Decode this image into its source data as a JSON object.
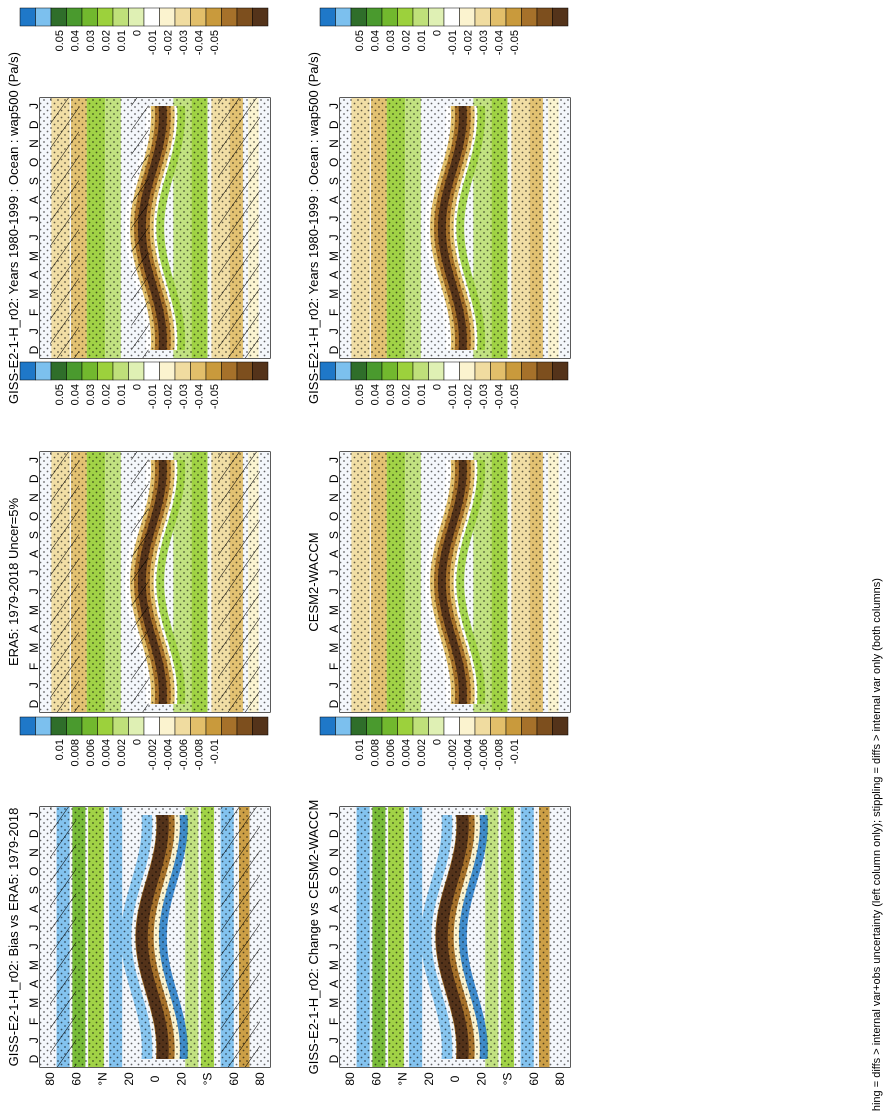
{
  "figure": {
    "footnote": "hatching = diffs > internal var+obs uncertainty (left column only); stippling = diffs > internal var only (both columns)"
  },
  "colors": {
    "mean_scale": [
      "#1f78c8",
      "#7cc0ee",
      "#2f6e2a",
      "#4a9a2e",
      "#72b82e",
      "#9cd13c",
      "#bfe07a",
      "#dff0b4",
      "#ffffff",
      "#fbf3cf",
      "#f0dca0",
      "#e2bf6a",
      "#c99a3c",
      "#a6712a",
      "#7d4f1e",
      "#54331a"
    ],
    "diff_scale": [
      "#1f78c8",
      "#7cc0ee",
      "#2f6e2a",
      "#4a9a2e",
      "#72b82e",
      "#9cd13c",
      "#bfe07a",
      "#dff0b4",
      "#ffffff",
      "#fbf3cf",
      "#f0dca0",
      "#e2bf6a",
      "#c99a3c",
      "#a6712a",
      "#7d4f1e",
      "#54331a"
    ]
  },
  "chart_data": [
    {
      "type": "heatmap",
      "panel": "top-left",
      "title": "GISS-E2-1-H_r02: Years 1980-1999 : Ocean : wap500 (Pa/s)",
      "x_ticks": [
        "D",
        "J",
        "F",
        "M",
        "A",
        "M",
        "J",
        "J",
        "A",
        "S",
        "O",
        "N",
        "D",
        "J"
      ],
      "y_ticks": [
        "80",
        "60",
        "°N",
        "20",
        "0",
        "20",
        "°S",
        "60",
        "80"
      ],
      "colorbar_labels": [
        "0.05",
        "0.04",
        "0.03",
        "0.02",
        "0.01",
        "0",
        "-0.01",
        "-0.02",
        "-0.03",
        "-0.04",
        "-0.05"
      ],
      "hatching": true,
      "stippling": true
    },
    {
      "type": "heatmap",
      "panel": "top-right",
      "title": "GISS-E2-1-H_r02: Years 1980-1999 : Ocean : wap500 (Pa/s)",
      "x_ticks": [
        "D",
        "J",
        "F",
        "M",
        "A",
        "M",
        "J",
        "J",
        "A",
        "S",
        "O",
        "N",
        "D",
        "J"
      ],
      "y_ticks": [
        "80",
        "60",
        "°N",
        "20",
        "0",
        "20",
        "°S",
        "60",
        "80"
      ],
      "colorbar_labels": [
        "0.05",
        "0.04",
        "0.03",
        "0.02",
        "0.01",
        "0",
        "-0.01",
        "-0.02",
        "-0.03",
        "-0.04",
        "-0.05"
      ],
      "hatching": false,
      "stippling": true
    },
    {
      "type": "heatmap",
      "panel": "middle-left",
      "title": "ERA5: 1979-2018 Uncer=5%",
      "x_ticks": [
        "D",
        "J",
        "F",
        "M",
        "A",
        "M",
        "J",
        "J",
        "A",
        "S",
        "O",
        "N",
        "D",
        "J"
      ],
      "y_ticks": [
        "80",
        "60",
        "°N",
        "20",
        "0",
        "20",
        "°S",
        "60",
        "80"
      ],
      "colorbar_labels": [
        "0.05",
        "0.04",
        "0.03",
        "0.02",
        "0.01",
        "0",
        "-0.01",
        "-0.02",
        "-0.03",
        "-0.04",
        "-0.05"
      ],
      "hatching": true,
      "stippling": true
    },
    {
      "type": "heatmap",
      "panel": "middle-right",
      "title": "CESM2-WACCM",
      "x_ticks": [
        "D",
        "J",
        "F",
        "M",
        "A",
        "M",
        "J",
        "J",
        "A",
        "S",
        "O",
        "N",
        "D",
        "J"
      ],
      "y_ticks": [
        "80",
        "60",
        "°N",
        "20",
        "0",
        "20",
        "°S",
        "60",
        "80"
      ],
      "colorbar_labels": [
        "0.05",
        "0.04",
        "0.03",
        "0.02",
        "0.01",
        "0",
        "-0.01",
        "-0.02",
        "-0.03",
        "-0.04",
        "-0.05"
      ],
      "hatching": false,
      "stippling": true
    },
    {
      "type": "heatmap",
      "panel": "bottom-left",
      "title": "GISS-E2-1-H_r02: Bias vs ERA5: 1979-2018",
      "x_ticks": [
        "D",
        "J",
        "F",
        "M",
        "A",
        "M",
        "J",
        "J",
        "A",
        "S",
        "O",
        "N",
        "D",
        "J"
      ],
      "y_ticks": [
        "80",
        "60",
        "°N",
        "20",
        "0",
        "20",
        "°S",
        "60",
        "80"
      ],
      "colorbar_labels": [
        "0.01",
        "0.008",
        "0.006",
        "0.004",
        "0.002",
        "0",
        "-0.002",
        "-0.004",
        "-0.006",
        "-0.008",
        "-0.01"
      ],
      "hatching": true,
      "stippling": true
    },
    {
      "type": "heatmap",
      "panel": "bottom-right",
      "title": "GISS-E2-1-H_r02: Change vs CESM2-WACCM",
      "x_ticks": [
        "D",
        "J",
        "F",
        "M",
        "A",
        "M",
        "J",
        "J",
        "A",
        "S",
        "O",
        "N",
        "D",
        "J"
      ],
      "y_ticks": [
        "80",
        "60",
        "°N",
        "20",
        "0",
        "20",
        "°S",
        "60",
        "80"
      ],
      "colorbar_labels": [
        "0.01",
        "0.008",
        "0.006",
        "0.004",
        "0.002",
        "0",
        "-0.002",
        "-0.004",
        "-0.006",
        "-0.008",
        "-0.01"
      ],
      "hatching": false,
      "stippling": true
    }
  ]
}
